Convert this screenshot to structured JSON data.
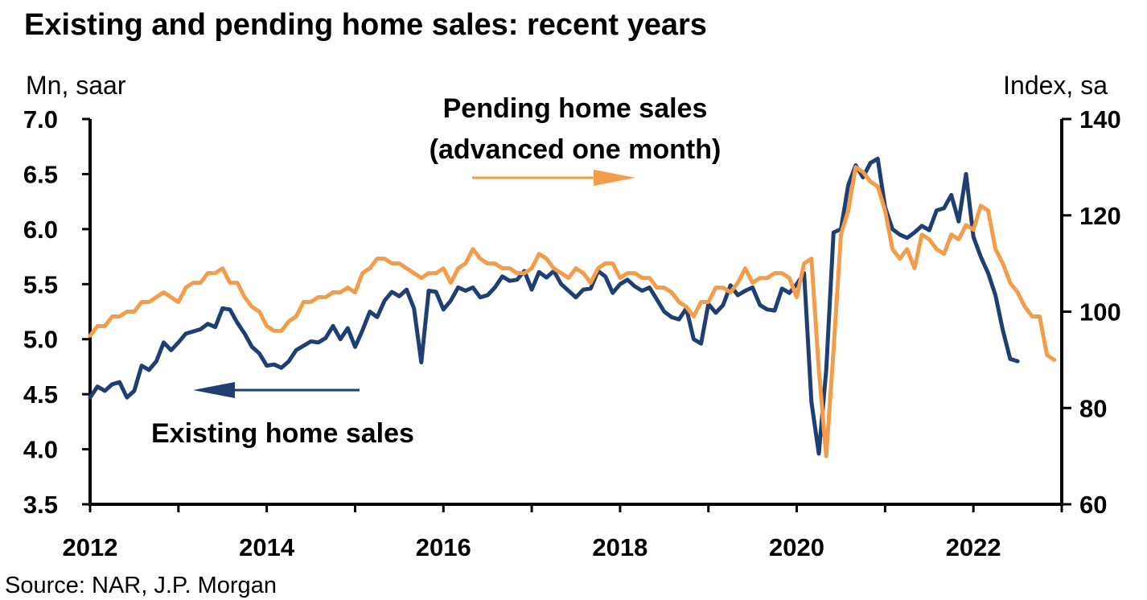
{
  "chart_data": {
    "type": "line",
    "title": "Existing and pending home sales: recent years",
    "left_axis": {
      "label": "Mn, saar",
      "min": 3.5,
      "max": 7.0,
      "ticks": [
        "3.5",
        "4.0",
        "4.5",
        "5.0",
        "5.5",
        "6.0",
        "6.5",
        "7.0"
      ]
    },
    "right_axis": {
      "label": "Index, sa",
      "min": 60,
      "max": 140,
      "ticks": [
        "60",
        "80",
        "100",
        "120",
        "140"
      ]
    },
    "x_axis": {
      "min": 2012.0,
      "max": 2023.0,
      "tick_labels": [
        "2012",
        "2014",
        "2016",
        "2018",
        "2020",
        "2022"
      ]
    },
    "grid": false,
    "series": [
      {
        "name": "Existing home sales",
        "axis": "left",
        "color": "#1f3f73",
        "start": 2012.0,
        "step_months": 1,
        "values": [
          4.47,
          4.57,
          4.53,
          4.59,
          4.61,
          4.47,
          4.53,
          4.76,
          4.72,
          4.8,
          4.97,
          4.9,
          4.97,
          5.05,
          5.07,
          5.09,
          5.14,
          5.11,
          5.28,
          5.27,
          5.15,
          5.05,
          4.93,
          4.87,
          4.76,
          4.77,
          4.74,
          4.8,
          4.9,
          4.94,
          4.98,
          4.97,
          5.01,
          5.12,
          5.0,
          5.1,
          4.93,
          5.08,
          5.25,
          5.2,
          5.35,
          5.43,
          5.39,
          5.45,
          5.28,
          4.79,
          5.44,
          5.43,
          5.27,
          5.35,
          5.47,
          5.44,
          5.47,
          5.38,
          5.4,
          5.47,
          5.57,
          5.53,
          5.54,
          5.62,
          5.45,
          5.61,
          5.56,
          5.62,
          5.5,
          5.44,
          5.38,
          5.45,
          5.46,
          5.62,
          5.57,
          5.42,
          5.5,
          5.54,
          5.48,
          5.44,
          5.47,
          5.36,
          5.25,
          5.2,
          5.18,
          5.28,
          5.0,
          4.96,
          5.32,
          5.24,
          5.31,
          5.49,
          5.4,
          5.44,
          5.47,
          5.31,
          5.27,
          5.26,
          5.46,
          5.42,
          5.5,
          5.6,
          4.43,
          3.96,
          4.72,
          5.97,
          6.0,
          6.4,
          6.58,
          6.47,
          6.6,
          6.64,
          6.2,
          6.0,
          5.95,
          5.92,
          5.97,
          6.03,
          5.99,
          6.17,
          6.19,
          6.31,
          6.07,
          6.5,
          5.93,
          5.75,
          5.6,
          5.4,
          5.08,
          4.82,
          4.8
        ]
      },
      {
        "name": "Pending home sales (advanced one month)",
        "axis": "right",
        "color": "#f39c4a",
        "start": 2012.0,
        "step_months": 1,
        "values": [
          95,
          97,
          97,
          99,
          99,
          100,
          100,
          102,
          102,
          103,
          104,
          103,
          102,
          105,
          106,
          106,
          108,
          108,
          109,
          106,
          106,
          103,
          101,
          100,
          97,
          96,
          96,
          98,
          99,
          102,
          102,
          103,
          103,
          104,
          104,
          105,
          104,
          108,
          109,
          111,
          111,
          110,
          110,
          109,
          108,
          107,
          108,
          108,
          109,
          106,
          109,
          110,
          113,
          111,
          110,
          110,
          109,
          109,
          108,
          108,
          109,
          112,
          111,
          109,
          108,
          107,
          109,
          108,
          106,
          109,
          110,
          110,
          107,
          108,
          108,
          107,
          107,
          105,
          105,
          104,
          102,
          101,
          99,
          102,
          102,
          105,
          105,
          104,
          106,
          109,
          106,
          107,
          107,
          108,
          108,
          107,
          103,
          110,
          111,
          88,
          70,
          92,
          116,
          121,
          130,
          129,
          127,
          126,
          121,
          113,
          111,
          113,
          109,
          116,
          115,
          113,
          112,
          116,
          115,
          118,
          117,
          122,
          121,
          113,
          110,
          106,
          104,
          101,
          99,
          99,
          91,
          90
        ]
      }
    ],
    "annotations": [
      {
        "lines": [
          "Pending home sales",
          "(advanced one month)"
        ],
        "arrow_direction": "right",
        "color": "#f39c4a"
      },
      {
        "lines": [
          "Existing home sales"
        ],
        "arrow_direction": "left",
        "color": "#1f3f73"
      }
    ],
    "source": "Source: NAR, J.P. Morgan"
  }
}
